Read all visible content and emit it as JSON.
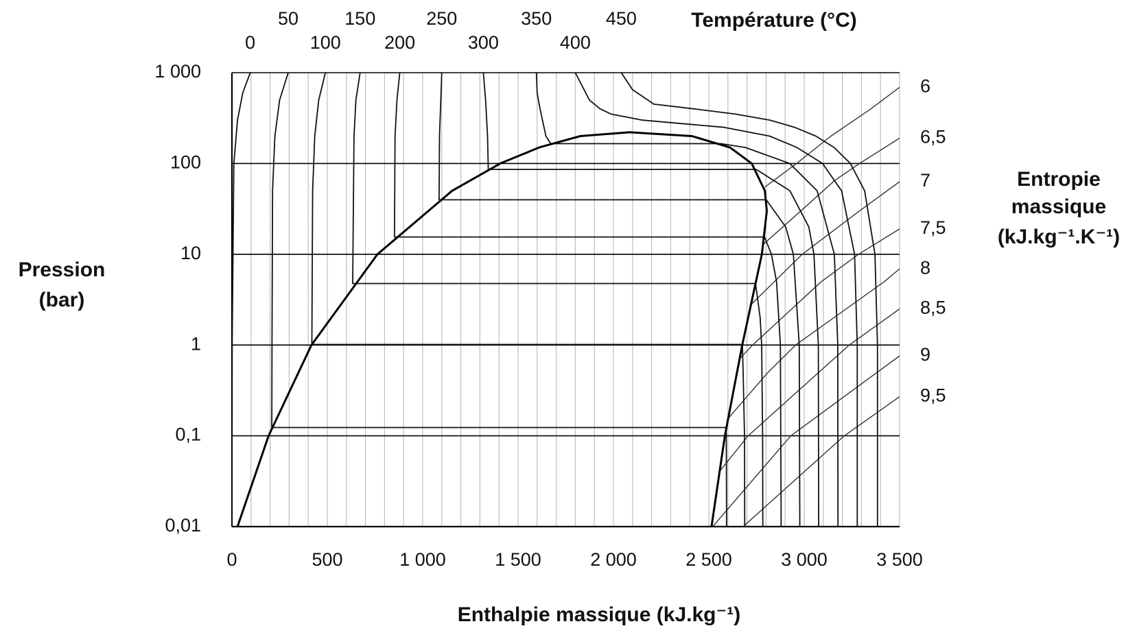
{
  "chart_data": {
    "type": "line",
    "xlabel": "Enthalpie massique (kJ.kg⁻¹)",
    "ylabel": [
      "Pression",
      "(bar)"
    ],
    "xlim": [
      0,
      3500
    ],
    "ylim": [
      0.01,
      1000
    ],
    "yscale": "log",
    "grid": true,
    "xticks": [
      0,
      500,
      {
        "value": 1000,
        "label": "1 000"
      },
      {
        "value": 1500,
        "label": "1 500"
      },
      {
        "value": 2000,
        "label": "2 000"
      },
      {
        "value": 2500,
        "label": "2 500"
      },
      {
        "value": 3000,
        "label": "3 000"
      },
      {
        "value": 3500,
        "label": "3 500"
      }
    ],
    "xminor": [
      100,
      200,
      300,
      400,
      600,
      700,
      800,
      900,
      1100,
      1200,
      1300,
      1400,
      1600,
      1700,
      1800,
      1900,
      2100,
      2200,
      2300,
      2400,
      2600,
      2700,
      2800,
      2900,
      3100,
      3200,
      3300,
      3400
    ],
    "yticks": [
      {
        "value": 0.01,
        "label": "0,01"
      },
      {
        "value": 0.1,
        "label": "0,1"
      },
      1,
      10,
      100,
      {
        "value": 1000,
        "label": "1 000"
      }
    ],
    "saturation_curve": {
      "color": "#000000",
      "x": [
        29,
        192,
        417,
        763,
        1154,
        1407,
        1610,
        1826,
        2084,
        2412,
        2611,
        2725,
        2794,
        2804,
        2778,
        2675,
        2584,
        2514
      ],
      "values": [
        0.01,
        0.1,
        1,
        10,
        50,
        100,
        150,
        200,
        220.6,
        200,
        150,
        100,
        50,
        30,
        10,
        1,
        0.1,
        0.01
      ]
    },
    "isotherms": {
      "title": "Température (°C)",
      "color": "#111111",
      "series": [
        {
          "name": "0",
          "x": [
            0,
            1,
            10,
            29,
            57,
            96
          ],
          "values": [
            0.01,
            1,
            100,
            300,
            600,
            1000
          ]
        },
        {
          "name": "50",
          "x": [
            295,
            250,
            225,
            213,
            210,
            209,
            2591,
            2592,
            2593
          ],
          "values": [
            1000,
            500,
            200,
            50,
            1,
            0.1235,
            0.1235,
            0.05,
            0.01
          ]
        },
        {
          "name": "100",
          "x": [
            490,
            455,
            434,
            423,
            419,
            2676,
            2680,
            2687,
            2688
          ],
          "values": [
            1000,
            500,
            200,
            50,
            1.014,
            1.014,
            0.5,
            0.1,
            0.01
          ]
        },
        {
          "name": "150",
          "x": [
            672,
            650,
            640,
            633,
            2745,
            2769,
            2777,
            2782,
            2783
          ],
          "values": [
            1000,
            500,
            200,
            4.76,
            4.76,
            2,
            1,
            0.1,
            0.01
          ]
        },
        {
          "name": "200",
          "x": [
            880,
            865,
            855,
            852,
            2792,
            2828,
            2855,
            2875,
            2879
          ],
          "values": [
            1000,
            500,
            200,
            15.5,
            15.5,
            10,
            5,
            1,
            0.01
          ]
        },
        {
          "name": "250",
          "x": [
            1100,
            1095,
            1088,
            1086,
            2801,
            2903,
            2943,
            2974,
            2977
          ],
          "values": [
            1000,
            500,
            200,
            39.8,
            39.8,
            20,
            10,
            1,
            0.01
          ]
        },
        {
          "name": "300",
          "x": [
            1318,
            1330,
            1340,
            1344,
            2749,
            2925,
            3024,
            3051,
            3074,
            3076
          ],
          "values": [
            1000,
            500,
            200,
            85.9,
            85.9,
            50,
            20,
            10,
            1,
            0.01
          ]
        },
        {
          "name": "350",
          "x": [
            1596,
            1600,
            1615,
            1646,
            1671,
            2563,
            2692,
            2924,
            3068,
            3158,
            3176,
            3177
          ],
          "values": [
            1000,
            600,
            400,
            200,
            165.4,
            165.4,
            150,
            100,
            50,
            10,
            1,
            0.01
          ]
        },
        {
          "name": "400",
          "x": [
            1800,
            1874,
            1930,
            1988,
            2152,
            2580,
            2819,
            2962,
            3096,
            3196,
            3264,
            3278,
            3278
          ],
          "values": [
            1000,
            500,
            400,
            350,
            300,
            250,
            200,
            150,
            100,
            50,
            10,
            1,
            0.01
          ]
        },
        {
          "name": "450",
          "x": [
            2041,
            2100,
            2212,
            2420,
            2640,
            2821,
            2950,
            3061,
            3157,
            3242,
            3317,
            3371,
            3384,
            3384
          ],
          "values": [
            1000,
            650,
            450,
            400,
            350,
            300,
            250,
            200,
            150,
            100,
            50,
            10,
            1,
            0.01
          ]
        }
      ]
    },
    "isentropes": {
      "title": [
        "Entropie",
        "massique",
        "(kJ.kg⁻¹.K⁻¹)"
      ],
      "color": "#333333",
      "series": [
        {
          "name": "6",
          "x": [
            2794,
            2960,
            3140,
            3350,
            3500
          ],
          "values": [
            55,
            100,
            200,
            400,
            690
          ]
        },
        {
          "name": "6,5",
          "x": [
            2788,
            2990,
            3160,
            3290,
            3500
          ],
          "values": [
            13,
            31,
            65,
            100,
            190
          ]
        },
        {
          "name": "7",
          "x": [
            2722,
            2990,
            3290,
            3500
          ],
          "values": [
            2.8,
            10,
            30,
            63
          ]
        },
        {
          "name": "7,5",
          "x": [
            2660,
            2730,
            3090,
            3285,
            3500
          ],
          "values": [
            0.7,
            1,
            5,
            10,
            19
          ]
        },
        {
          "name": "8",
          "x": [
            2595,
            2810,
            2955,
            3420,
            3500
          ],
          "values": [
            0.15,
            0.5,
            1,
            5,
            6.9
          ]
        },
        {
          "name": "8,5",
          "x": [
            2554,
            2706,
            3236,
            3500
          ],
          "values": [
            0.04,
            0.1,
            1,
            2.5
          ]
        },
        {
          "name": "9",
          "x": [
            2520,
            2930,
            3500
          ],
          "values": [
            0.01,
            0.1,
            0.76
          ]
        },
        {
          "name": "9,5",
          "x": [
            2680,
            3210,
            3500
          ],
          "values": [
            0.01,
            0.1,
            0.27
          ]
        }
      ]
    }
  }
}
